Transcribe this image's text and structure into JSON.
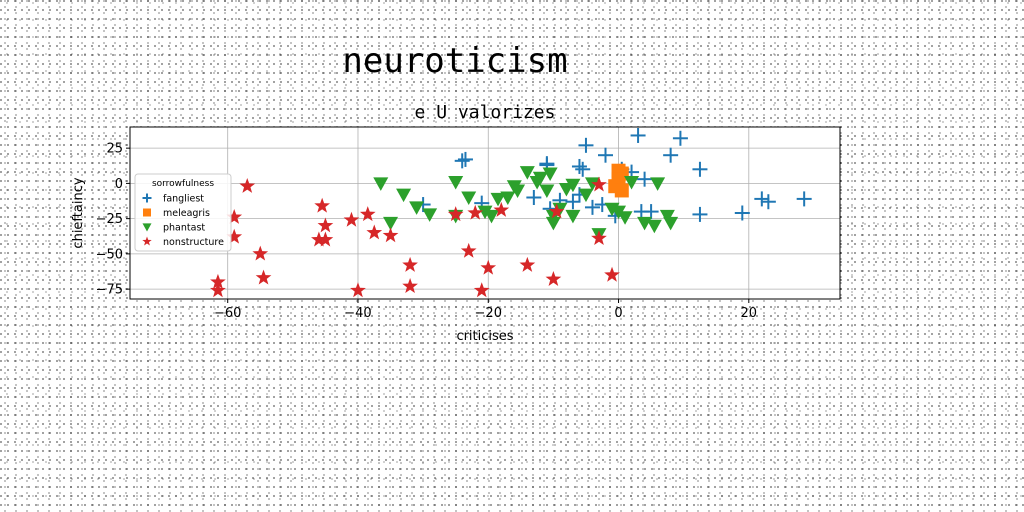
{
  "page": {
    "suptitle": "neuroticism"
  },
  "chart_data": {
    "type": "scatter",
    "title": "e U valorizes",
    "xlabel": "criticises",
    "ylabel": "chieftaincy",
    "xlim": [
      -75,
      34
    ],
    "ylim": [
      -82,
      40
    ],
    "xticks": [
      -60,
      -40,
      -20,
      0,
      20
    ],
    "yticks": [
      25,
      0,
      -25,
      -50,
      -75
    ],
    "grid": true,
    "legend": {
      "title": "sorrowfulness",
      "placement": "upper-left"
    },
    "series": [
      {
        "name": "fangliest",
        "marker": "plus",
        "color": "#1f77b4",
        "points": [
          [
            -24,
            16
          ],
          [
            -23.5,
            17
          ],
          [
            -11,
            14
          ],
          [
            -11,
            13
          ],
          [
            -5,
            27
          ],
          [
            -2,
            20
          ],
          [
            3,
            34
          ],
          [
            8,
            20
          ],
          [
            9.5,
            32
          ],
          [
            12.5,
            10
          ],
          [
            -6,
            12
          ],
          [
            -5.5,
            10
          ],
          [
            -30,
            -15
          ],
          [
            -21,
            -14
          ],
          [
            -13,
            -10
          ],
          [
            -9,
            -12
          ],
          [
            -7,
            -13
          ],
          [
            -6,
            -8
          ],
          [
            -4,
            -17
          ],
          [
            -2.5,
            -15
          ],
          [
            0.5,
            10
          ],
          [
            2,
            8
          ],
          [
            4,
            3
          ],
          [
            5,
            -20
          ],
          [
            3.5,
            -20
          ],
          [
            12.5,
            -22
          ],
          [
            19,
            -21
          ],
          [
            22,
            -11
          ],
          [
            23,
            -13
          ],
          [
            28.5,
            -11
          ],
          [
            -0.5,
            -23
          ],
          [
            -10.5,
            -18
          ]
        ]
      },
      {
        "name": "meleagris",
        "marker": "square",
        "color": "#ff7f0e",
        "points": [
          [
            0,
            9
          ],
          [
            0.5,
            7
          ],
          [
            0,
            3
          ],
          [
            -0.5,
            -2
          ],
          [
            0.5,
            -5
          ]
        ]
      },
      {
        "name": "phantast",
        "marker": "triangle-down",
        "color": "#2ca02c",
        "points": [
          [
            -36.5,
            0
          ],
          [
            -33,
            -8
          ],
          [
            -31,
            -17
          ],
          [
            -29,
            -22
          ],
          [
            -25,
            1
          ],
          [
            -25,
            -23
          ],
          [
            -23,
            -10
          ],
          [
            -20.5,
            -20
          ],
          [
            -19.5,
            -23
          ],
          [
            -18.5,
            -11
          ],
          [
            -17,
            -10
          ],
          [
            -15.5,
            -5
          ],
          [
            -14,
            8
          ],
          [
            -12.5,
            1
          ],
          [
            -12,
            4
          ],
          [
            -10.5,
            7
          ],
          [
            -10,
            -23
          ],
          [
            -10,
            -28
          ],
          [
            -9,
            -18
          ],
          [
            -8,
            -4
          ],
          [
            -7,
            -1
          ],
          [
            -7,
            -23
          ],
          [
            -5,
            -8
          ],
          [
            -4,
            0
          ],
          [
            -3,
            -36
          ],
          [
            -1,
            -18
          ],
          [
            0,
            -20
          ],
          [
            1,
            -24
          ],
          [
            2,
            1
          ],
          [
            4,
            -28
          ],
          [
            5.5,
            -30
          ],
          [
            6,
            0
          ],
          [
            7.5,
            -23
          ],
          [
            8,
            -28
          ],
          [
            -35,
            -28
          ],
          [
            -11,
            -5
          ],
          [
            -16,
            -2
          ]
        ]
      },
      {
        "name": "nonstructure",
        "marker": "star",
        "color": "#d62728",
        "points": [
          [
            -57,
            -2
          ],
          [
            -59,
            -24
          ],
          [
            -59,
            -38
          ],
          [
            -55,
            -50
          ],
          [
            -54.5,
            -67
          ],
          [
            -61.5,
            -70
          ],
          [
            -61.5,
            -76
          ],
          [
            -46,
            -40
          ],
          [
            -45.5,
            -16
          ],
          [
            -45,
            -40
          ],
          [
            -45,
            -30
          ],
          [
            -41,
            -26
          ],
          [
            -40,
            -76
          ],
          [
            -38.5,
            -22
          ],
          [
            -37.5,
            -35
          ],
          [
            -35,
            -37
          ],
          [
            -32,
            -58
          ],
          [
            -32,
            -73
          ],
          [
            -25,
            -22
          ],
          [
            -23,
            -48
          ],
          [
            -22,
            -21
          ],
          [
            -21,
            -76
          ],
          [
            -20,
            -60
          ],
          [
            -18,
            -19
          ],
          [
            -14,
            -58
          ],
          [
            -10,
            -68
          ],
          [
            -9.5,
            -20
          ],
          [
            -3,
            -39
          ],
          [
            -3,
            -1
          ],
          [
            -1,
            -65
          ]
        ]
      }
    ]
  }
}
